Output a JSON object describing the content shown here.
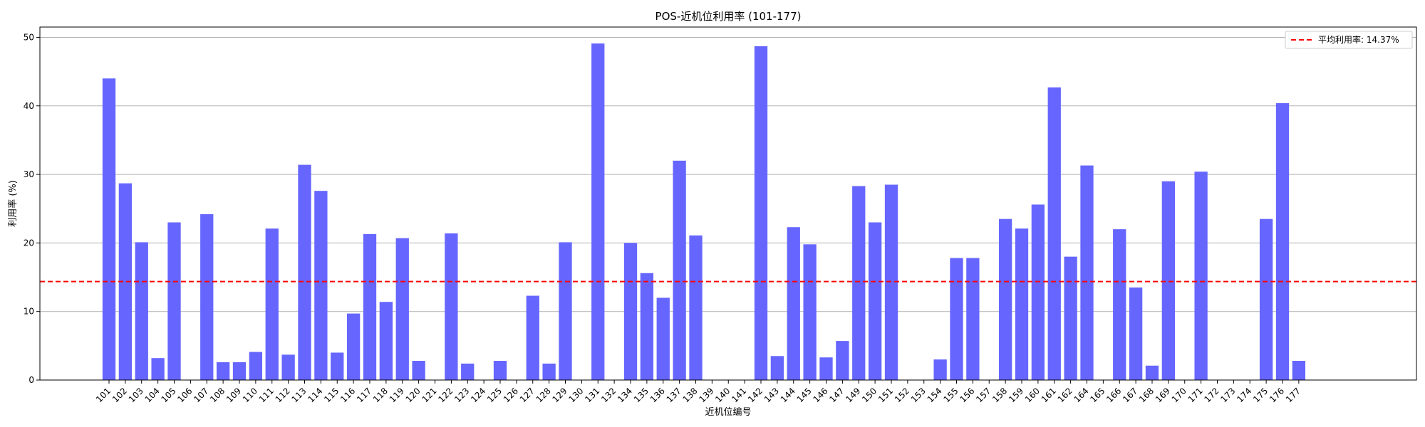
{
  "chart_data": {
    "type": "bar",
    "title": "POS-近机位利用率 (101-177)",
    "xlabel": "近机位编号",
    "ylabel": "利用率 (%)",
    "ylim": [
      0,
      51.5
    ],
    "yticks": [
      0,
      10,
      20,
      30,
      40,
      50
    ],
    "grid": "y",
    "legend_position": "top-right",
    "colors": {
      "bar": "#6666ff",
      "mean_line": "#ff0000",
      "grid": "#b0b0b0"
    },
    "categories": [
      "101",
      "102",
      "103",
      "104",
      "105",
      "106",
      "107",
      "108",
      "109",
      "110",
      "111",
      "112",
      "113",
      "114",
      "115",
      "116",
      "117",
      "118",
      "119",
      "120",
      "121",
      "122",
      "123",
      "124",
      "125",
      "126",
      "127",
      "128",
      "129",
      "130",
      "131",
      "132",
      "134",
      "135",
      "136",
      "137",
      "138",
      "139",
      "140",
      "141",
      "142",
      "143",
      "144",
      "145",
      "146",
      "147",
      "149",
      "150",
      "151",
      "152",
      "153",
      "154",
      "155",
      "156",
      "157",
      "158",
      "159",
      "160",
      "161",
      "162",
      "164",
      "165",
      "166",
      "167",
      "168",
      "169",
      "170",
      "171",
      "172",
      "173",
      "174",
      "175",
      "176",
      "177"
    ],
    "values": [
      44.0,
      28.7,
      20.1,
      3.2,
      23.0,
      0,
      24.2,
      2.6,
      2.6,
      4.1,
      22.1,
      3.7,
      31.4,
      27.6,
      4.0,
      9.7,
      21.3,
      11.4,
      20.7,
      2.8,
      0,
      21.4,
      2.4,
      0,
      2.8,
      0,
      12.3,
      2.4,
      20.1,
      0,
      49.1,
      0,
      20.0,
      15.6,
      12.0,
      32.0,
      21.1,
      0,
      0,
      0,
      48.7,
      3.5,
      22.3,
      19.8,
      3.3,
      5.7,
      28.3,
      23.0,
      28.5,
      0,
      0,
      3.0,
      17.8,
      17.8,
      0,
      23.5,
      22.1,
      25.6,
      42.7,
      18.0,
      31.3,
      0,
      22.0,
      13.5,
      2.1,
      29.0,
      0,
      30.4,
      0,
      0,
      0,
      23.5,
      40.4,
      2.8
    ],
    "mean": 14.37,
    "legend": [
      "平均利用率: 14.37%"
    ]
  }
}
